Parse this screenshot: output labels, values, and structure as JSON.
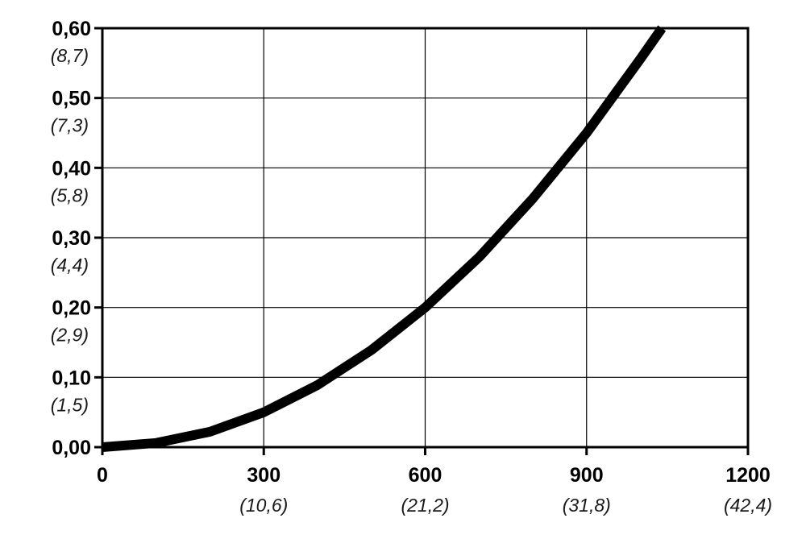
{
  "chart_data": {
    "type": "line",
    "title": "",
    "xlabel": "",
    "ylabel": "",
    "xlim": [
      0,
      1200
    ],
    "ylim": [
      0,
      0.6
    ],
    "grid": true,
    "x_ticks": [
      {
        "label": "0",
        "sublabel": ""
      },
      {
        "label": "300",
        "sublabel": "(10,6)"
      },
      {
        "label": "600",
        "sublabel": "(21,2)"
      },
      {
        "label": "900",
        "sublabel": "(31,8)"
      },
      {
        "label": "1200",
        "sublabel": "(42,4)"
      }
    ],
    "y_ticks": [
      {
        "label": "0,00",
        "sublabel": ""
      },
      {
        "label": "0,10",
        "sublabel": "(1,5)"
      },
      {
        "label": "0,20",
        "sublabel": "(2,9)"
      },
      {
        "label": "0,30",
        "sublabel": "(4,4)"
      },
      {
        "label": "0,40",
        "sublabel": "(5,8)"
      },
      {
        "label": "0,50",
        "sublabel": "(7,3)"
      },
      {
        "label": "0,60",
        "sublabel": "(8,7)"
      }
    ],
    "series": [
      {
        "color": "#000000",
        "x": [
          0,
          100,
          200,
          300,
          400,
          500,
          600,
          700,
          800,
          900,
          1000,
          1040
        ],
        "y": [
          0.0,
          0.006,
          0.022,
          0.05,
          0.089,
          0.139,
          0.2,
          0.272,
          0.356,
          0.45,
          0.556,
          0.6
        ]
      }
    ]
  }
}
